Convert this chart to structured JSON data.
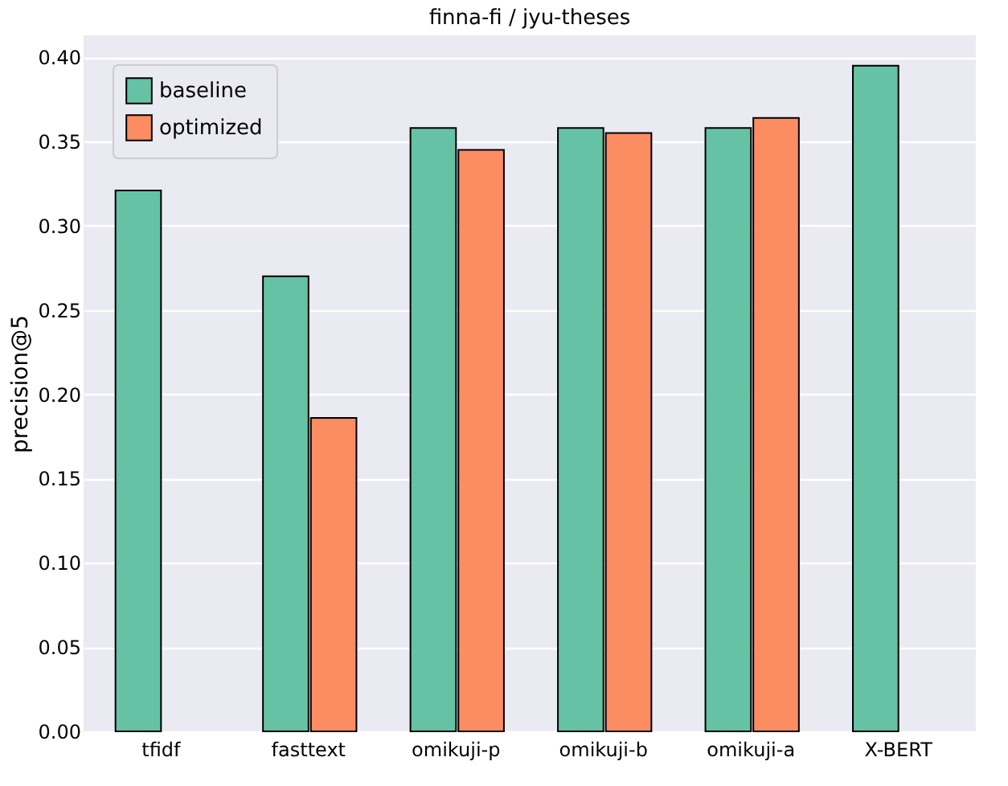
{
  "chart_data": {
    "type": "bar",
    "title": "finna-fi / jyu-theses",
    "ylabel": "precision@5",
    "categories": [
      "tfidf",
      "fasttext",
      "omikuji-p",
      "omikuji-b",
      "omikuji-a",
      "X-BERT"
    ],
    "series": [
      {
        "name": "baseline",
        "color": "#66c2a5",
        "values": [
          0.321,
          0.27,
          0.358,
          0.358,
          0.358,
          0.395
        ]
      },
      {
        "name": "optimized",
        "color": "#fc8d62",
        "values": [
          null,
          0.186,
          0.345,
          0.355,
          0.364,
          null
        ]
      }
    ],
    "ylim": [
      0,
      0.413
    ],
    "yticks": [
      {
        "value": 0,
        "label": "0.00"
      },
      {
        "value": 0.05,
        "label": "0.05"
      },
      {
        "value": 0.1,
        "label": "0.10"
      },
      {
        "value": 0.15,
        "label": "0.15"
      },
      {
        "value": 0.2,
        "label": "0.20"
      },
      {
        "value": 0.25,
        "label": "0.25"
      },
      {
        "value": 0.3,
        "label": "0.30"
      },
      {
        "value": 0.35,
        "label": "0.35"
      },
      {
        "value": 0.4,
        "label": "0.40"
      }
    ],
    "grid": "y",
    "legend": "top left"
  }
}
